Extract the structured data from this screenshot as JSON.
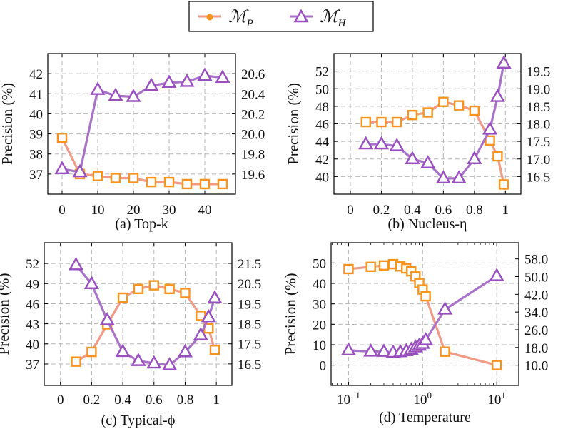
{
  "legend": {
    "entries": [
      {
        "name": "ℳ",
        "sub": "P",
        "marker": "circle",
        "color": "#f7941d",
        "line_color": "#f19a86"
      },
      {
        "name": "ℳ",
        "sub": "H",
        "marker": "triangle",
        "color": "#9a4fc0",
        "line_color": "#a772c8"
      }
    ]
  },
  "chart_data": [
    {
      "type": "line",
      "caption": "(a) Top-k",
      "ylabel": "Precision (%)",
      "xscale": "linear",
      "xlim": [
        -4,
        48.6
      ],
      "ylim": [
        36,
        43
      ],
      "y2lim": [
        19.4,
        20.8
      ],
      "xticks": [
        0,
        10,
        20,
        30,
        40
      ],
      "xtick_labels": [
        "0",
        "10",
        "20",
        "30",
        "40"
      ],
      "yticks": [
        37,
        38,
        39,
        40,
        41,
        42
      ],
      "ytick_labels": [
        "37",
        "38",
        "39",
        "40",
        "41",
        "42"
      ],
      "y2ticks": [
        19.6,
        19.8,
        20.0,
        20.2,
        20.4,
        20.6
      ],
      "y2tick_labels": [
        "19.6",
        "19.8",
        "20.0",
        "20.2",
        "20.4",
        "20.6"
      ],
      "grid": true,
      "x": [
        0,
        5,
        10,
        15,
        20,
        25,
        30,
        35,
        40,
        45
      ],
      "series": [
        {
          "legend_index": 0,
          "axis": "left",
          "marker": "square",
          "values": [
            38.8,
            37.0,
            36.9,
            36.8,
            36.8,
            36.6,
            36.6,
            36.5,
            36.5,
            36.5
          ]
        },
        {
          "legend_index": 1,
          "axis": "right",
          "marker": "triangle",
          "values": [
            19.65,
            19.62,
            20.44,
            20.38,
            20.37,
            20.48,
            20.51,
            20.52,
            20.58,
            20.56
          ]
        }
      ]
    },
    {
      "type": "line",
      "caption": "(b) Nucleus-η",
      "ylabel": "Precision (%)",
      "xscale": "linear",
      "xlim": [
        -0.106,
        1.1
      ],
      "ylim": [
        38,
        54
      ],
      "y2lim": [
        16,
        20
      ],
      "xticks": [
        0,
        0.2,
        0.4,
        0.6,
        0.8,
        1
      ],
      "xtick_labels": [
        "0",
        "0.2",
        "0.4",
        "0.6",
        "0.8",
        "1"
      ],
      "yticks": [
        40,
        42,
        44,
        46,
        48,
        50,
        52
      ],
      "ytick_labels": [
        "40",
        "42",
        "44",
        "46",
        "48",
        "50",
        "52"
      ],
      "y2ticks": [
        16.5,
        17.0,
        17.5,
        18.0,
        18.5,
        19.0,
        19.5
      ],
      "y2tick_labels": [
        "16.5",
        "17.0",
        "17.5",
        "18.0",
        "18.5",
        "19.0",
        "19.5"
      ],
      "grid": true,
      "x": [
        0.1,
        0.2,
        0.3,
        0.4,
        0.5,
        0.6,
        0.7,
        0.8,
        0.9,
        0.95,
        0.99
      ],
      "series": [
        {
          "legend_index": 0,
          "axis": "left",
          "marker": "square",
          "values": [
            46.2,
            46.2,
            46.2,
            47.0,
            47.3,
            48.5,
            48.1,
            47.5,
            44.1,
            42.3,
            39.1
          ]
        },
        {
          "legend_index": 1,
          "axis": "right",
          "marker": "triangle",
          "values": [
            17.42,
            17.42,
            17.37,
            17.0,
            16.88,
            16.45,
            16.45,
            17.0,
            17.84,
            18.77,
            19.72
          ]
        }
      ]
    },
    {
      "type": "line",
      "caption": "(c) Typical-ϕ",
      "ylabel": "Precision (%)",
      "xscale": "linear",
      "xlim": [
        -0.104,
        1.1
      ],
      "ylim": [
        33.8,
        55.1
      ],
      "y2lim": [
        15.43,
        22.53
      ],
      "xticks": [
        0,
        0.2,
        0.4,
        0.6,
        0.8,
        1
      ],
      "xtick_labels": [
        "0",
        "0.2",
        "0.4",
        "0.6",
        "0.8",
        "1"
      ],
      "yticks": [
        37,
        40,
        43,
        46,
        49,
        52
      ],
      "ytick_labels": [
        "37",
        "40",
        "43",
        "46",
        "49",
        "52"
      ],
      "y2ticks": [
        16.5,
        17.5,
        18.5,
        19.5,
        20.5,
        21.5
      ],
      "y2tick_labels": [
        "16.5",
        "17.5",
        "18.5",
        "19.5",
        "20.5",
        "21.5"
      ],
      "grid": true,
      "x": [
        0.1,
        0.2,
        0.3,
        0.4,
        0.5,
        0.6,
        0.7,
        0.8,
        0.9,
        0.95,
        0.99
      ],
      "series": [
        {
          "legend_index": 0,
          "axis": "left",
          "marker": "square",
          "values": [
            37.35,
            38.8,
            42.9,
            46.9,
            48.2,
            48.75,
            48.2,
            47.6,
            44.2,
            42.3,
            39.1
          ]
        },
        {
          "legend_index": 1,
          "axis": "right",
          "marker": "triangle",
          "values": [
            21.42,
            20.48,
            18.68,
            17.1,
            16.65,
            16.53,
            16.44,
            17.09,
            17.93,
            18.83,
            19.77
          ]
        }
      ]
    },
    {
      "type": "line",
      "caption": "(d) Temperature",
      "ylabel": "Precision (%)",
      "xscale": "log",
      "xlim": [
        0.0582,
        19.8
      ],
      "ylim": [
        -9.9,
        59.9
      ],
      "y2lim": [
        0.87,
        65.3
      ],
      "xticks": [
        0.1,
        1,
        10
      ],
      "xtick_labels": [
        "10^−1",
        "10^0",
        "10^1"
      ],
      "yticks": [
        0,
        10,
        20,
        30,
        40,
        50
      ],
      "ytick_labels": [
        "0",
        "10",
        "20",
        "30",
        "40",
        "50"
      ],
      "y2ticks": [
        10,
        18,
        26,
        34,
        42,
        50,
        58
      ],
      "y2tick_labels": [
        "10.0",
        "18.0",
        "26.0",
        "34.0",
        "42.0",
        "50.0",
        "58.0"
      ],
      "grid": true,
      "x": [
        0.1,
        0.2,
        0.3,
        0.4,
        0.5,
        0.6,
        0.7,
        0.8,
        0.9,
        1.0,
        1.1,
        2,
        10
      ],
      "series": [
        {
          "legend_index": 0,
          "axis": "left",
          "marker": "square",
          "values": [
            47.0,
            48.1,
            48.8,
            49.4,
            48.3,
            47.3,
            45.9,
            43.4,
            40.1,
            37.0,
            33.7,
            6.6,
            0
          ]
        },
        {
          "legend_index": 1,
          "axis": "right",
          "marker": "triangle",
          "values": [
            16.7,
            16.2,
            16.1,
            15.7,
            15.9,
            16.4,
            17.0,
            18.1,
            18.9,
            19.7,
            21.3,
            35.2,
            50.3
          ]
        }
      ]
    }
  ]
}
